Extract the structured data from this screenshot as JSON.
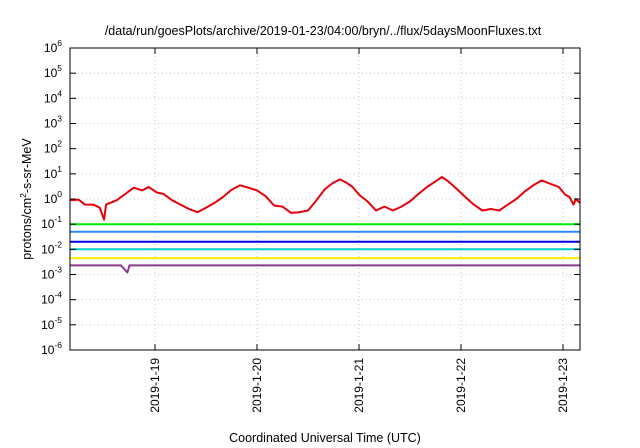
{
  "chart_data": {
    "type": "line",
    "title": "/data/run/goesPlots/archive/2019-01-23/04:00/bryn/../flux/5daysMoonFluxes.txt",
    "xlabel": "Coordinated Universal Time (UTC)",
    "ylabel": {
      "prefix": "protons/cm",
      "sup": "2",
      "suffix": "-s-sr-MeV"
    },
    "y_scale": "log",
    "ylim_exponents": [
      -6,
      6
    ],
    "y_ticks": [
      {
        "base": "10",
        "exp": "-6"
      },
      {
        "base": "10",
        "exp": "-5"
      },
      {
        "base": "10",
        "exp": "-4"
      },
      {
        "base": "10",
        "exp": "-3"
      },
      {
        "base": "10",
        "exp": "-2"
      },
      {
        "base": "10",
        "exp": "-1"
      },
      {
        "base": "10",
        "exp": "0"
      },
      {
        "base": "10",
        "exp": "1"
      },
      {
        "base": "10",
        "exp": "2"
      },
      {
        "base": "10",
        "exp": "3"
      },
      {
        "base": "10",
        "exp": "4"
      },
      {
        "base": "10",
        "exp": "5"
      },
      {
        "base": "10",
        "exp": "6"
      }
    ],
    "x_range_days": [
      "2019-01-18T04:00",
      "2019-01-23T04:00"
    ],
    "x_ticks": [
      "2019-1-19",
      "2019-1-20",
      "2019-1-21",
      "2019-1-22",
      "2019-1-23"
    ],
    "grid": true,
    "series": [
      {
        "color": "#e8000b",
        "points": [
          [
            "2019-01-18T04:00",
            0.9
          ],
          [
            "2019-01-18T06:00",
            0.95
          ],
          [
            "2019-01-18T07:30",
            0.6
          ],
          [
            "2019-01-18T09:30",
            0.6
          ],
          [
            "2019-01-18T11:00",
            0.45
          ],
          [
            "2019-01-18T12:00",
            0.15
          ],
          [
            "2019-01-18T12:30",
            0.6
          ],
          [
            "2019-01-18T15:00",
            0.9
          ],
          [
            "2019-01-18T17:00",
            1.6
          ],
          [
            "2019-01-18T19:00",
            2.8
          ],
          [
            "2019-01-18T21:00",
            2.2
          ],
          [
            "2019-01-18T22:30",
            3.0
          ],
          [
            "2019-01-19T00:30",
            1.8
          ],
          [
            "2019-01-19T02:00",
            1.6
          ],
          [
            "2019-01-19T04:00",
            0.9
          ],
          [
            "2019-01-19T06:00",
            0.6
          ],
          [
            "2019-01-19T08:00",
            0.4
          ],
          [
            "2019-01-19T10:00",
            0.3
          ],
          [
            "2019-01-19T12:00",
            0.45
          ],
          [
            "2019-01-19T14:00",
            0.7
          ],
          [
            "2019-01-19T16:00",
            1.2
          ],
          [
            "2019-01-19T18:00",
            2.3
          ],
          [
            "2019-01-19T20:00",
            3.5
          ],
          [
            "2019-01-19T22:00",
            2.8
          ],
          [
            "2019-01-20T00:00",
            2.2
          ],
          [
            "2019-01-20T02:00",
            1.3
          ],
          [
            "2019-01-20T04:00",
            0.55
          ],
          [
            "2019-01-20T06:00",
            0.5
          ],
          [
            "2019-01-20T08:00",
            0.28
          ],
          [
            "2019-01-20T10:00",
            0.3
          ],
          [
            "2019-01-20T12:00",
            0.35
          ],
          [
            "2019-01-20T14:00",
            0.9
          ],
          [
            "2019-01-20T16:00",
            2.5
          ],
          [
            "2019-01-20T18:00",
            4.5
          ],
          [
            "2019-01-20T19:30",
            6.0
          ],
          [
            "2019-01-20T21:00",
            4.5
          ],
          [
            "2019-01-20T22:30",
            3.0
          ],
          [
            "2019-01-21T00:00",
            1.5
          ],
          [
            "2019-01-21T02:00",
            0.8
          ],
          [
            "2019-01-21T04:00",
            0.35
          ],
          [
            "2019-01-21T06:00",
            0.5
          ],
          [
            "2019-01-21T08:00",
            0.35
          ],
          [
            "2019-01-21T10:00",
            0.5
          ],
          [
            "2019-01-21T12:00",
            0.8
          ],
          [
            "2019-01-21T14:00",
            1.6
          ],
          [
            "2019-01-21T16:00",
            3.0
          ],
          [
            "2019-01-21T18:00",
            5.0
          ],
          [
            "2019-01-21T19:30",
            7.5
          ],
          [
            "2019-01-21T21:00",
            5.0
          ],
          [
            "2019-01-21T23:00",
            2.5
          ],
          [
            "2019-01-22T01:00",
            1.2
          ],
          [
            "2019-01-22T03:00",
            0.6
          ],
          [
            "2019-01-22T05:00",
            0.35
          ],
          [
            "2019-01-22T07:00",
            0.4
          ],
          [
            "2019-01-22T09:00",
            0.35
          ],
          [
            "2019-01-22T11:00",
            0.6
          ],
          [
            "2019-01-22T13:00",
            1.0
          ],
          [
            "2019-01-22T15:00",
            2.0
          ],
          [
            "2019-01-22T17:00",
            3.5
          ],
          [
            "2019-01-22T19:00",
            5.5
          ],
          [
            "2019-01-22T21:00",
            4.0
          ],
          [
            "2019-01-22T23:00",
            3.0
          ],
          [
            "2019-01-23T00:30",
            1.5
          ],
          [
            "2019-01-23T01:30",
            1.2
          ],
          [
            "2019-01-23T02:30",
            0.6
          ],
          [
            "2019-01-23T03:00",
            1.0
          ],
          [
            "2019-01-23T04:00",
            0.7
          ]
        ]
      },
      {
        "color": "#00ee00",
        "points": [
          [
            "2019-01-18T04:00",
            0.1
          ],
          [
            "2019-01-18T12:00",
            0.1
          ],
          [
            "2019-01-18T20:00",
            0.1
          ],
          [
            "2019-01-19T04:00",
            0.1
          ],
          [
            "2019-01-19T12:00",
            0.1
          ],
          [
            "2019-01-19T20:00",
            0.1
          ],
          [
            "2019-01-20T04:00",
            0.1
          ],
          [
            "2019-01-20T12:00",
            0.1
          ],
          [
            "2019-01-20T20:00",
            0.1
          ],
          [
            "2019-01-21T04:00",
            0.1
          ],
          [
            "2019-01-21T12:00",
            0.1
          ],
          [
            "2019-01-21T20:00",
            0.1
          ],
          [
            "2019-01-22T04:00",
            0.1
          ],
          [
            "2019-01-22T12:00",
            0.1
          ],
          [
            "2019-01-22T20:00",
            0.1
          ],
          [
            "2019-01-23T04:00",
            0.1
          ]
        ]
      },
      {
        "color": "#2a8cff",
        "points": [
          [
            "2019-01-18T04:00",
            0.05
          ],
          [
            "2019-01-18T12:00",
            0.05
          ],
          [
            "2019-01-18T20:00",
            0.05
          ],
          [
            "2019-01-19T04:00",
            0.05
          ],
          [
            "2019-01-19T12:00",
            0.05
          ],
          [
            "2019-01-19T20:00",
            0.05
          ],
          [
            "2019-01-20T04:00",
            0.05
          ],
          [
            "2019-01-20T12:00",
            0.05
          ],
          [
            "2019-01-20T20:00",
            0.05
          ],
          [
            "2019-01-21T04:00",
            0.05
          ],
          [
            "2019-01-21T12:00",
            0.05
          ],
          [
            "2019-01-21T20:00",
            0.05
          ],
          [
            "2019-01-22T04:00",
            0.05
          ],
          [
            "2019-01-22T12:00",
            0.05
          ],
          [
            "2019-01-22T20:00",
            0.05
          ],
          [
            "2019-01-23T04:00",
            0.05
          ]
        ]
      },
      {
        "color": "#00cccc",
        "points": [
          [
            "2019-01-18T04:00",
            0.01
          ],
          [
            "2019-01-18T12:00",
            0.01
          ],
          [
            "2019-01-18T20:00",
            0.01
          ],
          [
            "2019-01-19T04:00",
            0.01
          ],
          [
            "2019-01-19T12:00",
            0.01
          ],
          [
            "2019-01-19T20:00",
            0.01
          ],
          [
            "2019-01-20T04:00",
            0.01
          ],
          [
            "2019-01-20T12:00",
            0.01
          ],
          [
            "2019-01-20T20:00",
            0.01
          ],
          [
            "2019-01-21T04:00",
            0.01
          ],
          [
            "2019-01-21T12:00",
            0.01
          ],
          [
            "2019-01-21T20:00",
            0.01
          ],
          [
            "2019-01-22T04:00",
            0.01
          ],
          [
            "2019-01-22T12:00",
            0.01
          ],
          [
            "2019-01-22T20:00",
            0.01
          ],
          [
            "2019-01-23T04:00",
            0.01
          ]
        ]
      },
      {
        "color": "#0000dd",
        "points": [
          [
            "2019-01-18T04:00",
            0.02
          ],
          [
            "2019-01-18T12:00",
            0.02
          ],
          [
            "2019-01-18T20:00",
            0.02
          ],
          [
            "2019-01-19T04:00",
            0.02
          ],
          [
            "2019-01-19T12:00",
            0.02
          ],
          [
            "2019-01-19T20:00",
            0.02
          ],
          [
            "2019-01-20T04:00",
            0.02
          ],
          [
            "2019-01-20T12:00",
            0.02
          ],
          [
            "2019-01-20T20:00",
            0.02
          ],
          [
            "2019-01-21T04:00",
            0.02
          ],
          [
            "2019-01-21T12:00",
            0.02
          ],
          [
            "2019-01-21T20:00",
            0.02
          ],
          [
            "2019-01-22T04:00",
            0.02
          ],
          [
            "2019-01-22T12:00",
            0.02
          ],
          [
            "2019-01-22T20:00",
            0.02
          ],
          [
            "2019-01-23T04:00",
            0.02
          ]
        ]
      },
      {
        "color": "#ffee00",
        "points": [
          [
            "2019-01-18T04:00",
            0.0045
          ],
          [
            "2019-01-18T16:00",
            0.0045
          ],
          [
            "2019-01-19T04:00",
            0.0045
          ],
          [
            "2019-01-19T16:00",
            0.0045
          ],
          [
            "2019-01-20T04:00",
            0.0045
          ],
          [
            "2019-01-20T16:00",
            0.0045
          ],
          [
            "2019-01-21T04:00",
            0.0045
          ],
          [
            "2019-01-21T16:00",
            0.0045
          ],
          [
            "2019-01-22T04:00",
            0.0045
          ],
          [
            "2019-01-22T16:00",
            0.0045
          ],
          [
            "2019-01-23T04:00",
            0.0045
          ]
        ]
      },
      {
        "color": "#8b3a8b",
        "points": [
          [
            "2019-01-18T04:00",
            0.0023
          ],
          [
            "2019-01-18T16:00",
            0.0023
          ],
          [
            "2019-01-18T17:30",
            0.0012
          ],
          [
            "2019-01-18T18:00",
            0.0023
          ],
          [
            "2019-01-19T04:00",
            0.0023
          ],
          [
            "2019-01-19T16:00",
            0.0023
          ],
          [
            "2019-01-20T04:00",
            0.0023
          ],
          [
            "2019-01-20T16:00",
            0.0023
          ],
          [
            "2019-01-21T04:00",
            0.0023
          ],
          [
            "2019-01-21T16:00",
            0.0023
          ],
          [
            "2019-01-22T04:00",
            0.0023
          ],
          [
            "2019-01-22T16:00",
            0.0023
          ],
          [
            "2019-01-23T04:00",
            0.0023
          ]
        ]
      }
    ]
  }
}
